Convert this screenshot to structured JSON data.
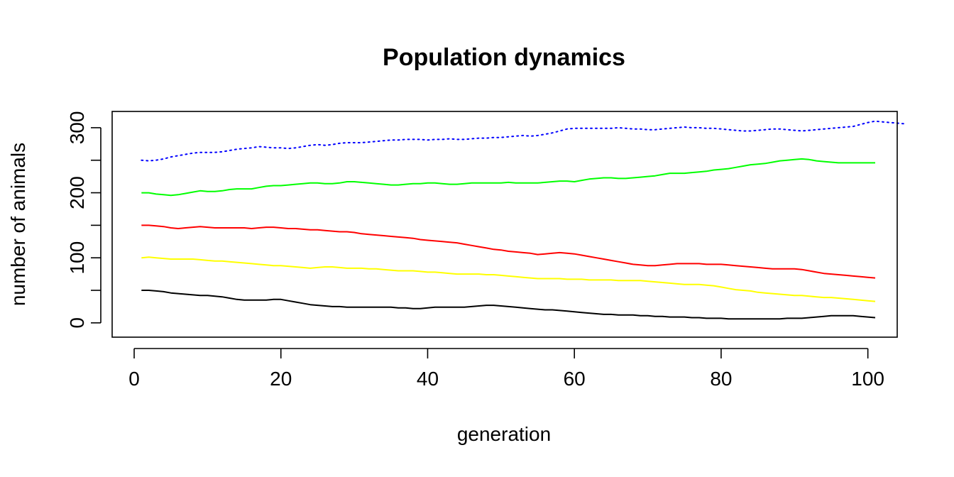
{
  "chart_data": {
    "type": "line",
    "title": "Population dynamics",
    "xlabel": "generation",
    "ylabel": "number of animals",
    "xlim": [
      -3,
      104
    ],
    "ylim": [
      -22,
      325
    ],
    "x_ticks": [
      0,
      20,
      40,
      60,
      80,
      100
    ],
    "y_ticks": [
      0,
      100,
      200,
      300
    ],
    "y_minor_ticks": [
      50,
      150,
      250
    ],
    "grid": false,
    "x_start": 1,
    "x_step": 1,
    "series": [
      {
        "name": "blue (dotted)",
        "color": "#0000ff",
        "style": "dotted",
        "values": [
          250,
          249,
          250,
          252,
          255,
          257,
          259,
          261,
          262,
          262,
          262,
          263,
          265,
          267,
          268,
          269,
          271,
          270,
          269,
          269,
          268,
          269,
          271,
          273,
          274,
          273,
          274,
          276,
          277,
          277,
          277,
          278,
          279,
          280,
          281,
          281,
          282,
          282,
          282,
          281,
          282,
          282,
          283,
          282,
          282,
          283,
          284,
          284,
          285,
          285,
          286,
          287,
          288,
          287,
          288,
          290,
          292,
          295,
          298,
          299,
          299,
          299,
          299,
          299,
          299,
          300,
          299,
          298,
          298,
          297,
          297,
          298,
          299,
          300,
          301,
          300,
          300,
          299,
          299,
          298,
          297,
          296,
          295,
          295,
          296,
          297,
          298,
          298,
          297,
          296,
          295,
          296,
          297,
          298,
          299,
          300,
          301,
          302,
          305,
          308,
          310,
          309,
          308,
          307,
          306
        ]
      },
      {
        "name": "green",
        "color": "#00ff00",
        "style": "solid",
        "values": [
          200,
          200,
          198,
          197,
          196,
          197,
          199,
          201,
          203,
          202,
          202,
          203,
          205,
          206,
          206,
          206,
          208,
          210,
          211,
          211,
          212,
          213,
          214,
          215,
          215,
          214,
          214,
          215,
          217,
          217,
          216,
          215,
          214,
          213,
          212,
          212,
          213,
          214,
          214,
          215,
          215,
          214,
          213,
          213,
          214,
          215,
          215,
          215,
          215,
          215,
          216,
          215,
          215,
          215,
          215,
          216,
          217,
          218,
          218,
          217,
          219,
          221,
          222,
          223,
          223,
          222,
          222,
          223,
          224,
          225,
          226,
          228,
          230,
          230,
          230,
          231,
          232,
          233,
          235,
          236,
          237,
          239,
          241,
          243,
          244,
          245,
          247,
          249,
          250,
          251,
          252,
          251,
          249,
          248,
          247,
          246,
          246,
          246,
          246,
          246,
          246
        ]
      },
      {
        "name": "red",
        "color": "#ff0000",
        "style": "solid",
        "values": [
          150,
          150,
          149,
          148,
          146,
          145,
          146,
          147,
          148,
          147,
          146,
          146,
          146,
          146,
          146,
          145,
          146,
          147,
          147,
          146,
          145,
          145,
          144,
          143,
          143,
          142,
          141,
          140,
          140,
          139,
          137,
          136,
          135,
          134,
          133,
          132,
          131,
          130,
          128,
          127,
          126,
          125,
          124,
          123,
          121,
          119,
          117,
          115,
          113,
          112,
          110,
          109,
          108,
          107,
          105,
          106,
          107,
          108,
          107,
          106,
          104,
          102,
          100,
          98,
          96,
          94,
          92,
          90,
          89,
          88,
          88,
          89,
          90,
          91,
          91,
          91,
          91,
          90,
          90,
          90,
          89,
          88,
          87,
          86,
          85,
          84,
          83,
          83,
          83,
          83,
          82,
          80,
          78,
          76,
          75,
          74,
          73,
          72,
          71,
          70,
          69
        ]
      },
      {
        "name": "yellow",
        "color": "#ffff00",
        "style": "solid",
        "values": [
          100,
          101,
          100,
          99,
          98,
          98,
          98,
          98,
          97,
          96,
          95,
          95,
          94,
          93,
          92,
          91,
          90,
          89,
          88,
          88,
          87,
          86,
          85,
          84,
          85,
          86,
          86,
          85,
          84,
          84,
          84,
          83,
          83,
          82,
          81,
          80,
          80,
          80,
          79,
          78,
          78,
          77,
          76,
          75,
          75,
          75,
          75,
          74,
          74,
          73,
          72,
          71,
          70,
          69,
          68,
          68,
          68,
          68,
          67,
          67,
          67,
          66,
          66,
          66,
          66,
          65,
          65,
          65,
          65,
          64,
          63,
          62,
          61,
          60,
          59,
          59,
          59,
          58,
          57,
          55,
          53,
          51,
          50,
          49,
          47,
          46,
          45,
          44,
          43,
          42,
          42,
          41,
          40,
          39,
          39,
          38,
          37,
          36,
          35,
          34,
          33
        ]
      },
      {
        "name": "black",
        "color": "#000000",
        "style": "solid",
        "values": [
          50,
          50,
          49,
          48,
          46,
          45,
          44,
          43,
          42,
          42,
          41,
          40,
          38,
          36,
          35,
          35,
          35,
          35,
          36,
          36,
          34,
          32,
          30,
          28,
          27,
          26,
          25,
          25,
          24,
          24,
          24,
          24,
          24,
          24,
          24,
          23,
          23,
          22,
          22,
          23,
          24,
          24,
          24,
          24,
          24,
          25,
          26,
          27,
          27,
          26,
          25,
          24,
          23,
          22,
          21,
          20,
          20,
          19,
          18,
          17,
          16,
          15,
          14,
          13,
          13,
          12,
          12,
          12,
          11,
          11,
          10,
          10,
          9,
          9,
          9,
          8,
          8,
          7,
          7,
          7,
          6,
          6,
          6,
          6,
          6,
          6,
          6,
          6,
          7,
          7,
          7,
          8,
          9,
          10,
          11,
          11,
          11,
          11,
          10,
          9,
          8
        ]
      }
    ]
  }
}
